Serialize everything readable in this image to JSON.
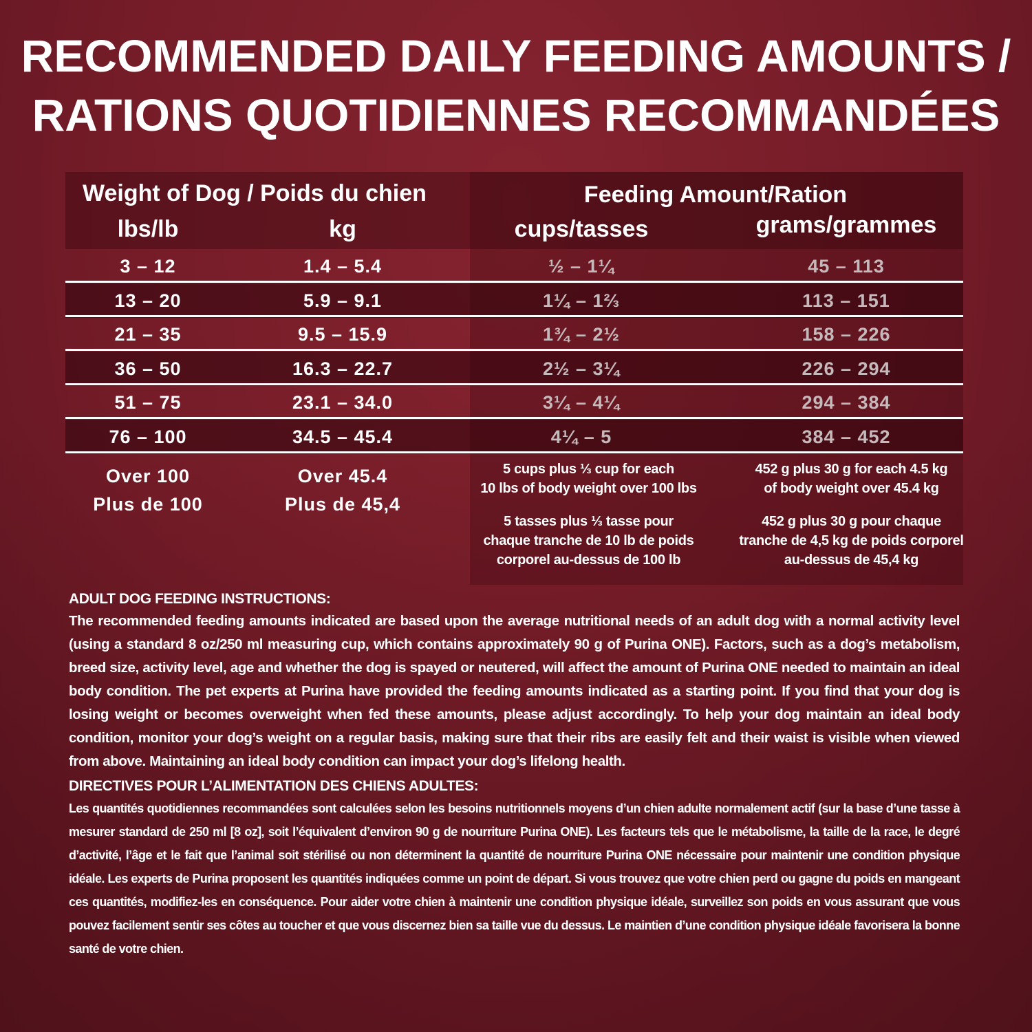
{
  "title": {
    "line1": "RECOMMENDED DAILY FEEDING AMOUNTS /",
    "line2": "RATIONS QUOTIDIENNES RECOMMANDÉES"
  },
  "table": {
    "header": {
      "weight": "Weight of Dog / Poids du chien",
      "feeding": "Feeding Amount/Ration",
      "lbs": "lbs/lb",
      "kg": "kg",
      "cups": "cups/tasses",
      "grams": "grams/grammes"
    },
    "rows": [
      {
        "lbs": "3 – 12",
        "kg": "1.4 – 5.4",
        "cups": "½ – 1¼",
        "grams": "45 – 113"
      },
      {
        "lbs": "13 – 20",
        "kg": "5.9 – 9.1",
        "cups": "1¼ – 1⅔",
        "grams": "113 – 151"
      },
      {
        "lbs": "21 – 35",
        "kg": "9.5 – 15.9",
        "cups": "1¾ – 2½",
        "grams": "158 – 226"
      },
      {
        "lbs": "36 – 50",
        "kg": "16.3 – 22.7",
        "cups": "2½ – 3¼",
        "grams": "226 – 294"
      },
      {
        "lbs": "51 – 75",
        "kg": "23.1 – 34.0",
        "cups": "3¼ – 4¼",
        "grams": "294 – 384"
      },
      {
        "lbs": "76 – 100",
        "kg": "34.5 – 45.4",
        "cups": "4¼ – 5",
        "grams": "384 – 452"
      }
    ],
    "over": {
      "lbs_en": "Over 100",
      "lbs_fr": "Plus de 100",
      "kg_en": "Over 45.4",
      "kg_fr": "Plus de 45,4",
      "cups_en": "5 cups plus ⅓ cup for each\n10 lbs of body weight over 100 lbs",
      "cups_fr": "5 tasses plus ⅓ tasse pour\nchaque tranche de 10 lb de poids\ncorporel au-dessus de 100 lb",
      "grams_en": "452 g plus 30 g for each 4.5 kg\nof body weight over 45.4 kg",
      "grams_fr": "452 g plus 30 g pour chaque\ntranche de 4,5 kg de poids corporel\nau-dessus de 45,4 kg"
    }
  },
  "instructions": {
    "en_heading": "ADULT DOG FEEDING INSTRUCTIONS:",
    "en_text": "The recommended feeding amounts indicated are based upon the average nutritional needs of an adult dog with a normal activity level (using a standard 8 oz/250 ml measuring cup, which contains approximately 90 g of Purina ONE). Factors, such as a dog’s metabolism, breed size, activity level, age and whether the dog is spayed or neutered, will affect the amount of Purina ONE needed to maintain an ideal body condition. The pet experts at Purina have provided the feeding amounts indicated as a starting point. If you find that your dog is losing weight or becomes overweight when fed these amounts, please adjust accordingly. To help your dog maintain an ideal body condition, monitor your dog’s weight on a regular basis, making sure that their ribs are easily felt and their waist is visible when viewed from above. Maintaining an ideal body condition can impact your dog’s lifelong health.",
    "fr_heading": "DIRECTIVES POUR L’ALIMENTATION DES CHIENS ADULTES:",
    "fr_text": "Les quantités quotidiennes recommandées sont calculées selon les besoins nutritionnels moyens d’un chien adulte normalement actif (sur la base d’une tasse à mesurer standard de 250 ml [8 oz], soit l’équivalent d’environ 90 g de nourriture Purina ONE). Les facteurs tels que le métabolisme, la taille de la race, le degré d’activité, l’âge et le fait que l’animal soit stérilisé ou non déterminent la quantité de nourriture Purina ONE nécessaire pour maintenir une condition physique idéale. Les experts de Purina proposent les quantités indiquées comme un point de départ. Si vous trouvez que votre chien perd ou gagne du poids en mangeant ces quantités, modifiez-les en conséquence. Pour aider votre chien à maintenir une condition physique idéale, surveillez son poids en vous assurant que vous pouvez facilement sentir ses côtes au toucher et que vous discernez bien sa taille vue du dessus. Le maintien d’une condition physique idéale favorisera la bonne santé de votre chien."
  },
  "colors": {
    "background": "#7a1f2c",
    "dark_row": "#4e0f18",
    "text": "#ffffff"
  }
}
